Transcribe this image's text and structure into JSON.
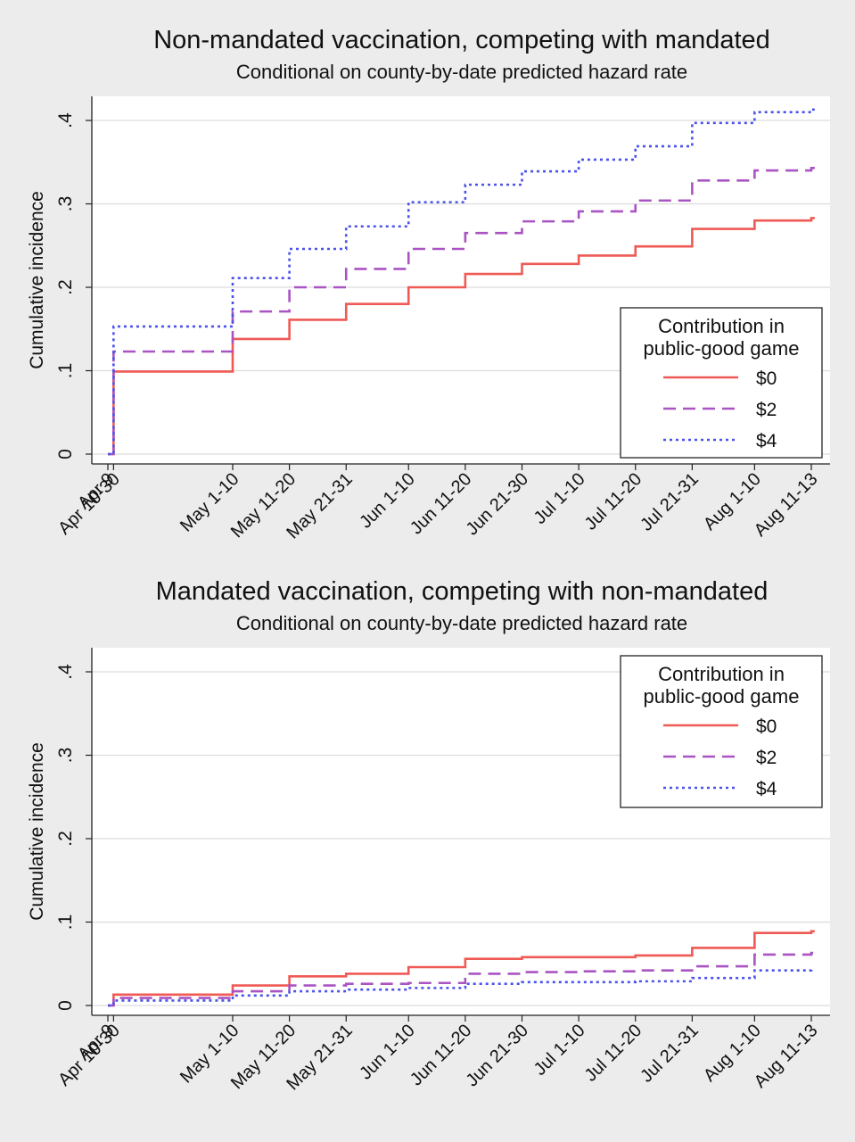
{
  "colors": {
    "background": "#ececec",
    "plot_bg": "#ffffff",
    "grid": "#dcdcdc",
    "series": [
      "#ef5a55",
      "#a954c2",
      "#4a52ea"
    ]
  },
  "chart_data": [
    {
      "type": "line",
      "step": true,
      "title": "Non-mandated vaccination, competing with mandated",
      "subtitle": "Conditional on county-by-date predicted hazard rate",
      "xlabel": "",
      "ylabel": "Cumulative incidence",
      "ylim": [
        0,
        0.43
      ],
      "yticks": [
        0,
        0.1,
        0.2,
        0.3,
        0.4
      ],
      "ytick_labels": [
        "0",
        ".1",
        ".2",
        ".3",
        ".4"
      ],
      "x_tick_labels": [
        "Apr 9",
        "Apr 10-30",
        "May 1-10",
        "May 11-20",
        "May 21-31",
        "Jun 1-10",
        "Jun 11-20",
        "Jun 21-30",
        "Jul 1-10",
        "Jul 11-20",
        "Jul 21-31",
        "Aug 1-10",
        "Aug 11-13"
      ],
      "x_tick_days": [
        0,
        1,
        22,
        32,
        42,
        53,
        63,
        73,
        83,
        93,
        103,
        114,
        124
      ],
      "grid": true,
      "legend": {
        "title": "Contribution in public-good game",
        "position": "right"
      },
      "series": [
        {
          "name": "$0",
          "x": [
            0,
            1,
            22,
            32,
            42,
            53,
            63,
            73,
            83,
            93,
            103,
            114,
            124,
            124.6
          ],
          "values": [
            0,
            0.099,
            0.138,
            0.161,
            0.18,
            0.2,
            0.216,
            0.228,
            0.238,
            0.249,
            0.27,
            0.28,
            0.283,
            0.283
          ]
        },
        {
          "name": "$2",
          "x": [
            0,
            1,
            22,
            32,
            42,
            53,
            63,
            73,
            83,
            93,
            103,
            114,
            124,
            124.6
          ],
          "values": [
            0,
            0.123,
            0.171,
            0.2,
            0.222,
            0.246,
            0.265,
            0.279,
            0.291,
            0.304,
            0.328,
            0.34,
            0.343,
            0.343
          ]
        },
        {
          "name": "$4",
          "x": [
            0,
            1,
            22,
            32,
            42,
            53,
            63,
            73,
            83,
            93,
            103,
            114,
            124,
            124.6
          ],
          "values": [
            0,
            0.153,
            0.211,
            0.246,
            0.273,
            0.302,
            0.323,
            0.339,
            0.353,
            0.369,
            0.397,
            0.41,
            0.413,
            0.413
          ]
        }
      ]
    },
    {
      "type": "line",
      "step": true,
      "title": "Mandated vaccination, competing with non-mandated",
      "subtitle": "Conditional on county-by-date predicted hazard rate",
      "xlabel": "",
      "ylabel": "Cumulative incidence",
      "ylim": [
        0,
        0.43
      ],
      "yticks": [
        0,
        0.1,
        0.2,
        0.3,
        0.4
      ],
      "ytick_labels": [
        "0",
        ".1",
        ".2",
        ".3",
        ".4"
      ],
      "x_tick_labels": [
        "Apr 9",
        "Apr 10-30",
        "May 1-10",
        "May 11-20",
        "May 21-31",
        "Jun 1-10",
        "Jun 11-20",
        "Jun 21-30",
        "Jul 1-10",
        "Jul 11-20",
        "Jul 21-31",
        "Aug 1-10",
        "Aug 11-13"
      ],
      "x_tick_days": [
        0,
        1,
        22,
        32,
        42,
        53,
        63,
        73,
        83,
        93,
        103,
        114,
        124
      ],
      "grid": true,
      "legend": {
        "title": "Contribution in public-good game",
        "position": "top-right"
      },
      "series": [
        {
          "name": "$0",
          "x": [
            0,
            1,
            22,
            32,
            42,
            53,
            63,
            73,
            83,
            93,
            103,
            114,
            124,
            124.6
          ],
          "values": [
            0,
            0.013,
            0.024,
            0.035,
            0.038,
            0.046,
            0.056,
            0.058,
            0.058,
            0.06,
            0.069,
            0.087,
            0.089,
            0.089
          ]
        },
        {
          "name": "$2",
          "x": [
            0,
            1,
            22,
            32,
            42,
            53,
            63,
            73,
            83,
            93,
            103,
            114,
            124,
            124.6
          ],
          "values": [
            0,
            0.009,
            0.017,
            0.024,
            0.026,
            0.027,
            0.038,
            0.04,
            0.041,
            0.042,
            0.047,
            0.061,
            0.063,
            0.063
          ]
        },
        {
          "name": "$4",
          "x": [
            0,
            1,
            22,
            32,
            42,
            53,
            63,
            73,
            83,
            93,
            103,
            114,
            124,
            124.6
          ],
          "values": [
            0,
            0.006,
            0.012,
            0.017,
            0.019,
            0.021,
            0.026,
            0.028,
            0.028,
            0.029,
            0.033,
            0.042,
            0.043,
            0.043
          ]
        }
      ]
    }
  ]
}
